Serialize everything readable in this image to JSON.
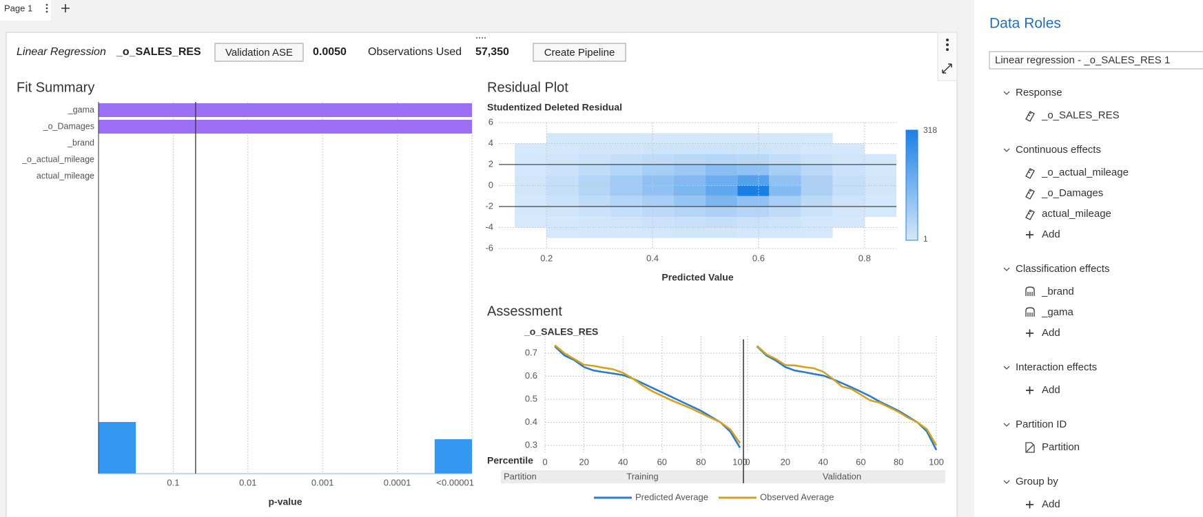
{
  "tabs": {
    "page": "Page 1"
  },
  "toolbar": {
    "model": "Linear Regression",
    "response": "_o_SALES_RES",
    "metric_button": "Validation ASE",
    "metric_value": "0.0050",
    "observations_label": "Observations Used",
    "observations": "57,350",
    "pipeline_button": "Create Pipeline"
  },
  "chart_data": [
    {
      "type": "bar",
      "title": "Fit Summary",
      "orientation": "horizontal",
      "categories": [
        "_gama",
        "_o_Damages",
        "_brand",
        "_o_actual_mileage",
        "actual_mileage"
      ],
      "values": [
        5,
        5,
        0,
        0,
        0
      ],
      "color": "#9b6ef5",
      "x_label": "p-value",
      "xlim": [
        0,
        5
      ],
      "xticks": [
        {
          "value": 1,
          "label": "0.1"
        },
        {
          "value": 2,
          "label": "0.01"
        },
        {
          "value": 3,
          "label": "0.001"
        },
        {
          "value": 4,
          "label": "0.0001"
        },
        {
          "value": 5,
          "label": "<0.00001"
        }
      ],
      "grid": true,
      "reference_line": 1.3,
      "histogram": {
        "bins": [
          0,
          0.5,
          1,
          1.5,
          2,
          2.5,
          3,
          3.5,
          4,
          4.5,
          5
        ],
        "counts": [
          3,
          0,
          0,
          0,
          0,
          0,
          0,
          0,
          0,
          2
        ],
        "ylim": [
          0,
          3
        ],
        "color": "#3399f0"
      }
    },
    {
      "type": "heatmap",
      "title": "Residual Plot",
      "y_label": "Studentized Deleted Residual",
      "x_label": "Predicted Value",
      "xlim": [
        0.11,
        0.86
      ],
      "xticks": [
        0.2,
        0.4,
        0.6,
        0.8
      ],
      "ylim": [
        -6,
        6
      ],
      "yticks": [
        -6,
        -4,
        -2,
        0,
        2,
        4,
        6
      ],
      "grid": true,
      "reference_lines": [
        -2,
        2
      ],
      "x_bins": [
        0.14,
        0.2,
        0.26,
        0.32,
        0.38,
        0.44,
        0.5,
        0.56,
        0.62,
        0.68,
        0.74,
        0.8,
        0.86
      ],
      "y_bins": [
        -5,
        -4,
        -3,
        -2,
        -1,
        0,
        1,
        2,
        3,
        4,
        5
      ],
      "counts": [
        [
          0,
          1,
          2,
          4,
          6,
          8,
          8,
          6,
          4,
          1,
          0,
          0
        ],
        [
          1,
          4,
          8,
          12,
          18,
          24,
          28,
          22,
          14,
          6,
          2,
          0
        ],
        [
          2,
          10,
          20,
          30,
          45,
          60,
          70,
          60,
          40,
          20,
          6,
          1
        ],
        [
          5,
          20,
          40,
          60,
          80,
          110,
          150,
          120,
          80,
          45,
          15,
          4
        ],
        [
          8,
          30,
          60,
          90,
          120,
          150,
          200,
          318,
          140,
          70,
          30,
          8
        ],
        [
          8,
          30,
          60,
          90,
          120,
          140,
          180,
          220,
          120,
          70,
          30,
          8
        ],
        [
          6,
          20,
          40,
          60,
          80,
          100,
          130,
          120,
          80,
          50,
          20,
          5
        ],
        [
          3,
          10,
          20,
          30,
          40,
          50,
          55,
          50,
          35,
          20,
          8,
          2
        ],
        [
          1,
          4,
          8,
          10,
          14,
          16,
          16,
          14,
          10,
          5,
          2,
          0
        ],
        [
          0,
          2,
          3,
          3,
          4,
          4,
          3,
          3,
          2,
          1,
          0,
          0
        ]
      ],
      "color_range": [
        1,
        318
      ],
      "colors": [
        "#d6e8fb",
        "#1b80e4"
      ]
    },
    {
      "type": "line",
      "title": "Assessment",
      "y_label": "_o_SALES_RES",
      "x_label": "Percentile",
      "partition_label": "Partition",
      "x": [
        5,
        10,
        15,
        20,
        25,
        30,
        35,
        40,
        45,
        50,
        55,
        60,
        65,
        70,
        75,
        80,
        85,
        90,
        95,
        100
      ],
      "xlim": [
        0,
        100
      ],
      "xticks": [
        0,
        20,
        40,
        60,
        80,
        100
      ],
      "ylim": [
        0.27,
        0.76
      ],
      "yticks": [
        0.3,
        0.4,
        0.5,
        0.6,
        0.7
      ],
      "grid": true,
      "legend": [
        {
          "name": "Predicted Average",
          "color": "#2a7bc9"
        },
        {
          "name": "Observed Average",
          "color": "#d4a21e"
        }
      ],
      "panels": [
        {
          "name": "Training",
          "series": [
            {
              "values": [
                0.73,
                0.69,
                0.67,
                0.64,
                0.625,
                0.618,
                0.612,
                0.605,
                0.59,
                0.57,
                0.55,
                0.53,
                0.51,
                0.49,
                0.47,
                0.45,
                0.425,
                0.4,
                0.36,
                0.29
              ]
            },
            {
              "values": [
                0.735,
                0.7,
                0.675,
                0.65,
                0.645,
                0.637,
                0.63,
                0.615,
                0.59,
                0.56,
                0.535,
                0.515,
                0.495,
                0.478,
                0.46,
                0.44,
                0.42,
                0.4,
                0.37,
                0.31
              ]
            }
          ]
        },
        {
          "name": "Validation",
          "series": [
            {
              "values": [
                0.73,
                0.69,
                0.668,
                0.64,
                0.625,
                0.618,
                0.61,
                0.603,
                0.588,
                0.57,
                0.552,
                0.533,
                0.513,
                0.49,
                0.47,
                0.45,
                0.425,
                0.4,
                0.36,
                0.28
              ]
            },
            {
              "values": [
                0.732,
                0.695,
                0.675,
                0.648,
                0.647,
                0.64,
                0.635,
                0.62,
                0.59,
                0.555,
                0.545,
                0.52,
                0.495,
                0.485,
                0.465,
                0.445,
                0.42,
                0.4,
                0.37,
                0.3
              ]
            }
          ]
        }
      ]
    }
  ],
  "data_roles": {
    "title": "Data Roles",
    "model_select": "Linear regression - _o_SALES_RES 1",
    "sections": [
      {
        "label": "Response",
        "items": [
          "_o_SALES_RES"
        ]
      },
      {
        "label": "Continuous effects",
        "items": [
          "_o_actual_mileage",
          "_o_Damages",
          "actual_mileage"
        ],
        "add": "Add"
      },
      {
        "label": "Classification effects",
        "items": [
          "_brand",
          "_gama"
        ],
        "add": "Add"
      },
      {
        "label": "Interaction effects",
        "items": [],
        "add": "Add"
      },
      {
        "label": "Partition ID",
        "items": [
          "Partition"
        ]
      },
      {
        "label": "Group by",
        "items": [],
        "add": "Add"
      }
    ]
  }
}
